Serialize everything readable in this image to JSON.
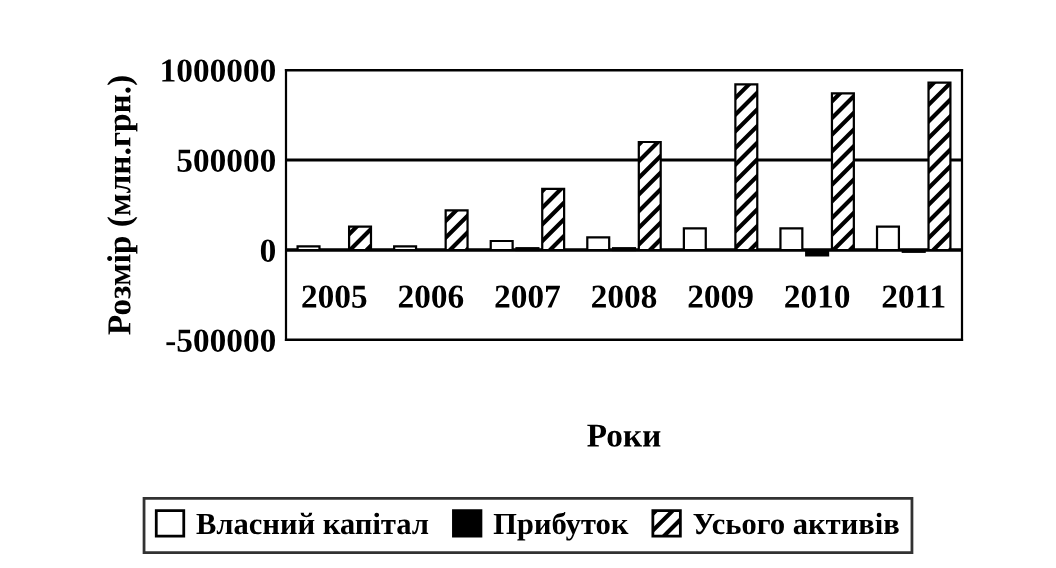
{
  "chart_data": {
    "type": "bar",
    "xlabel": "Роки",
    "ylabel": "Розмір (млн.грн.)",
    "categories": [
      "2005",
      "2006",
      "2007",
      "2008",
      "2009",
      "2010",
      "2011"
    ],
    "series": [
      {
        "name": "Власний капітал",
        "color": "#ffffff",
        "values": [
          20000,
          20000,
          50000,
          70000,
          120000,
          120000,
          130000
        ]
      },
      {
        "name": "Прибуток",
        "color": "#000000",
        "values": [
          0,
          0,
          10000,
          10000,
          0,
          -30000,
          -10000
        ]
      },
      {
        "name": "Усього активів",
        "color": "#000000",
        "values": [
          130000,
          220000,
          340000,
          600000,
          920000,
          870000,
          930000
        ]
      }
    ],
    "ylim": [
      -500000,
      1000000
    ],
    "yticks": [
      -500000,
      0,
      500000,
      1000000
    ],
    "grid": "y",
    "legend": "bottom"
  }
}
